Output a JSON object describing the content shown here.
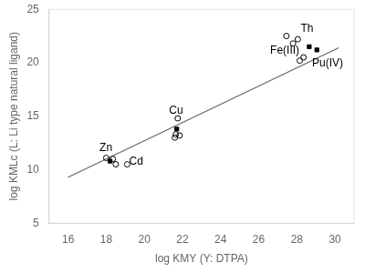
{
  "chart_data": {
    "type": "scatter",
    "xlabel": "log KMY (Y: DTPA)",
    "ylabel": "log KMLc (L: Li type natural ligand)",
    "xlim": [
      15,
      31
    ],
    "ylim": [
      5,
      25
    ],
    "xticks": [
      16,
      18,
      20,
      22,
      24,
      26,
      28,
      30
    ],
    "yticks": [
      5,
      10,
      15,
      20,
      25
    ],
    "grid": false,
    "series": [
      {
        "type": "line",
        "color": "#666666",
        "x": [
          16.0,
          30.2
        ],
        "values": [
          9.3,
          21.4
        ]
      },
      {
        "type": "scatter",
        "marker": "open_circle",
        "color": "#000000",
        "x": [
          18.0,
          18.35,
          18.5,
          19.1,
          21.6,
          21.75,
          21.85,
          21.65,
          27.45,
          27.8,
          28.05,
          28.15,
          28.35
        ],
        "values": [
          11.1,
          11.0,
          10.5,
          10.5,
          13.0,
          14.8,
          13.2,
          13.3,
          22.5,
          21.8,
          22.2,
          20.2,
          20.5
        ]
      },
      {
        "type": "scatter",
        "marker": "filled_square",
        "color": "#000000",
        "x": [
          18.2,
          21.7,
          28.65,
          29.05
        ],
        "values": [
          10.8,
          13.8,
          21.5,
          21.2
        ]
      }
    ],
    "annotations": [
      {
        "text": "Zn",
        "x": 17.65,
        "y": 11.55
      },
      {
        "text": "Cd",
        "x": 19.2,
        "y": 10.2
      },
      {
        "text": "Cu",
        "x": 21.3,
        "y": 15.0
      },
      {
        "text": "Th",
        "x": 28.2,
        "y": 22.7
      },
      {
        "text": "Fe(III)",
        "x": 26.6,
        "y": 20.6
      },
      {
        "text": "Pu(IV)",
        "x": 28.8,
        "y": 19.4
      }
    ]
  }
}
